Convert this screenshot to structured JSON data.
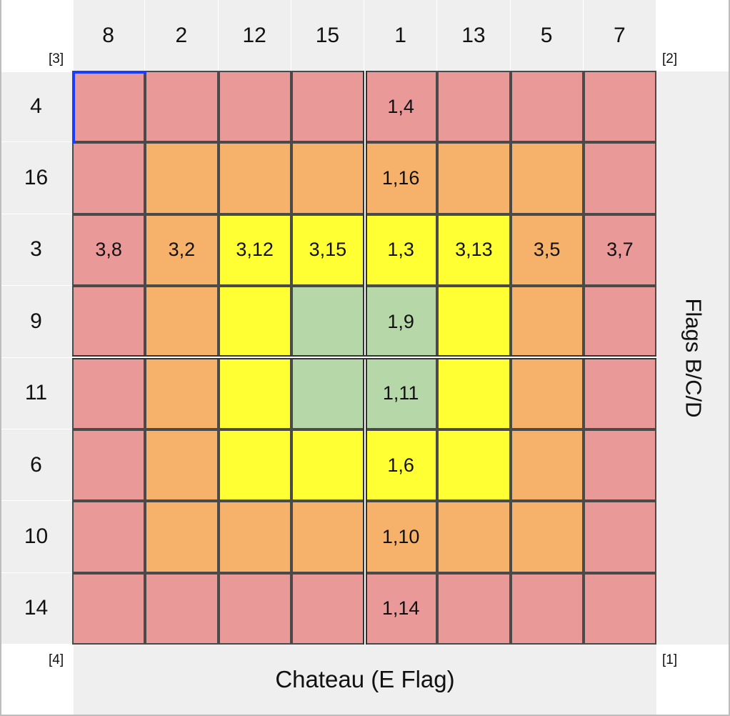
{
  "col_headers": [
    "8",
    "2",
    "12",
    "15",
    "1",
    "13",
    "5",
    "7"
  ],
  "row_headers": [
    "4",
    "16",
    "3",
    "9",
    "11",
    "6",
    "10",
    "14"
  ],
  "corners": {
    "top_left": "[3]",
    "top_right": "[2]",
    "bottom_left": "[4]",
    "bottom_right": "[1]"
  },
  "right_label": "Flags B/C/D",
  "bottom_label": "Chateau (E Flag)",
  "colors": {
    "red": "#ea9999",
    "orange": "#f6b26b",
    "yellow": "#ffff33",
    "green": "#b6d7a8",
    "header_bg": "#efefef",
    "selection": "#1a3cff"
  },
  "grid": [
    [
      {
        "c": "red",
        "t": ""
      },
      {
        "c": "red",
        "t": ""
      },
      {
        "c": "red",
        "t": ""
      },
      {
        "c": "red",
        "t": ""
      },
      {
        "c": "red",
        "t": "1,4"
      },
      {
        "c": "red",
        "t": ""
      },
      {
        "c": "red",
        "t": ""
      },
      {
        "c": "red",
        "t": ""
      }
    ],
    [
      {
        "c": "red",
        "t": ""
      },
      {
        "c": "orange",
        "t": ""
      },
      {
        "c": "orange",
        "t": ""
      },
      {
        "c": "orange",
        "t": ""
      },
      {
        "c": "orange",
        "t": "1,16"
      },
      {
        "c": "orange",
        "t": ""
      },
      {
        "c": "orange",
        "t": ""
      },
      {
        "c": "red",
        "t": ""
      }
    ],
    [
      {
        "c": "red",
        "t": "3,8"
      },
      {
        "c": "orange",
        "t": "3,2"
      },
      {
        "c": "yellow",
        "t": "3,12"
      },
      {
        "c": "yellow",
        "t": "3,15"
      },
      {
        "c": "yellow",
        "t": "1,3"
      },
      {
        "c": "yellow",
        "t": "3,13"
      },
      {
        "c": "orange",
        "t": "3,5"
      },
      {
        "c": "red",
        "t": "3,7"
      }
    ],
    [
      {
        "c": "red",
        "t": ""
      },
      {
        "c": "orange",
        "t": ""
      },
      {
        "c": "yellow",
        "t": ""
      },
      {
        "c": "green",
        "t": ""
      },
      {
        "c": "green",
        "t": "1,9"
      },
      {
        "c": "yellow",
        "t": ""
      },
      {
        "c": "orange",
        "t": ""
      },
      {
        "c": "red",
        "t": ""
      }
    ],
    [
      {
        "c": "red",
        "t": ""
      },
      {
        "c": "orange",
        "t": ""
      },
      {
        "c": "yellow",
        "t": ""
      },
      {
        "c": "green",
        "t": ""
      },
      {
        "c": "green",
        "t": "1,11"
      },
      {
        "c": "yellow",
        "t": ""
      },
      {
        "c": "orange",
        "t": ""
      },
      {
        "c": "red",
        "t": ""
      }
    ],
    [
      {
        "c": "red",
        "t": ""
      },
      {
        "c": "orange",
        "t": ""
      },
      {
        "c": "yellow",
        "t": ""
      },
      {
        "c": "yellow",
        "t": ""
      },
      {
        "c": "yellow",
        "t": "1,6"
      },
      {
        "c": "yellow",
        "t": ""
      },
      {
        "c": "orange",
        "t": ""
      },
      {
        "c": "red",
        "t": ""
      }
    ],
    [
      {
        "c": "red",
        "t": ""
      },
      {
        "c": "orange",
        "t": ""
      },
      {
        "c": "orange",
        "t": ""
      },
      {
        "c": "orange",
        "t": ""
      },
      {
        "c": "orange",
        "t": "1,10"
      },
      {
        "c": "orange",
        "t": ""
      },
      {
        "c": "orange",
        "t": ""
      },
      {
        "c": "red",
        "t": ""
      }
    ],
    [
      {
        "c": "red",
        "t": ""
      },
      {
        "c": "red",
        "t": ""
      },
      {
        "c": "red",
        "t": ""
      },
      {
        "c": "red",
        "t": ""
      },
      {
        "c": "red",
        "t": "1,14"
      },
      {
        "c": "red",
        "t": ""
      },
      {
        "c": "red",
        "t": ""
      },
      {
        "c": "red",
        "t": ""
      }
    ]
  ]
}
